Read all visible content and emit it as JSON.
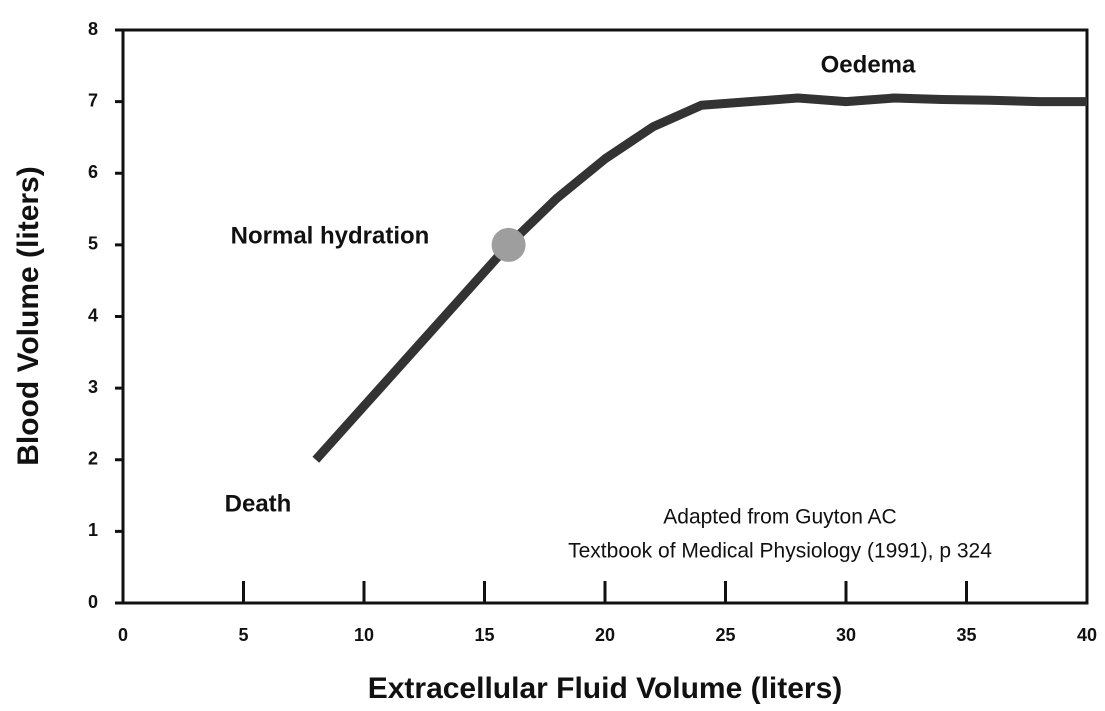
{
  "chart_data": {
    "type": "line",
    "xlabel": "Extracellular Fluid Volume (liters)",
    "ylabel": "Blood Volume (liters)",
    "xlim": [
      0,
      40
    ],
    "xticks": [
      0,
      5,
      10,
      15,
      20,
      25,
      30,
      35,
      40
    ],
    "ylim": [
      0,
      8
    ],
    "yticks": [
      0,
      1,
      2,
      3,
      4,
      5,
      6,
      7,
      8
    ],
    "grid": false,
    "series": [
      {
        "color": "#333333",
        "x": [
          8,
          10,
          12,
          14,
          16,
          18,
          20,
          22,
          24,
          26,
          28,
          30,
          32,
          34,
          36,
          38,
          40
        ],
        "values": [
          2,
          2.75,
          3.5,
          4.25,
          5,
          5.65,
          6.2,
          6.65,
          6.95,
          7.0,
          7.05,
          7.0,
          7.05,
          7.03,
          7.02,
          7.0,
          7.0
        ]
      }
    ],
    "markers": [
      {
        "x": 16,
        "y": 5,
        "color": "#9e9e9e"
      }
    ],
    "annotations": [
      "Oedema",
      "Normal hydration",
      "Death",
      "Adapted from Guyton AC",
      "Textbook of Medical Physiology (1991), p 324"
    ]
  }
}
